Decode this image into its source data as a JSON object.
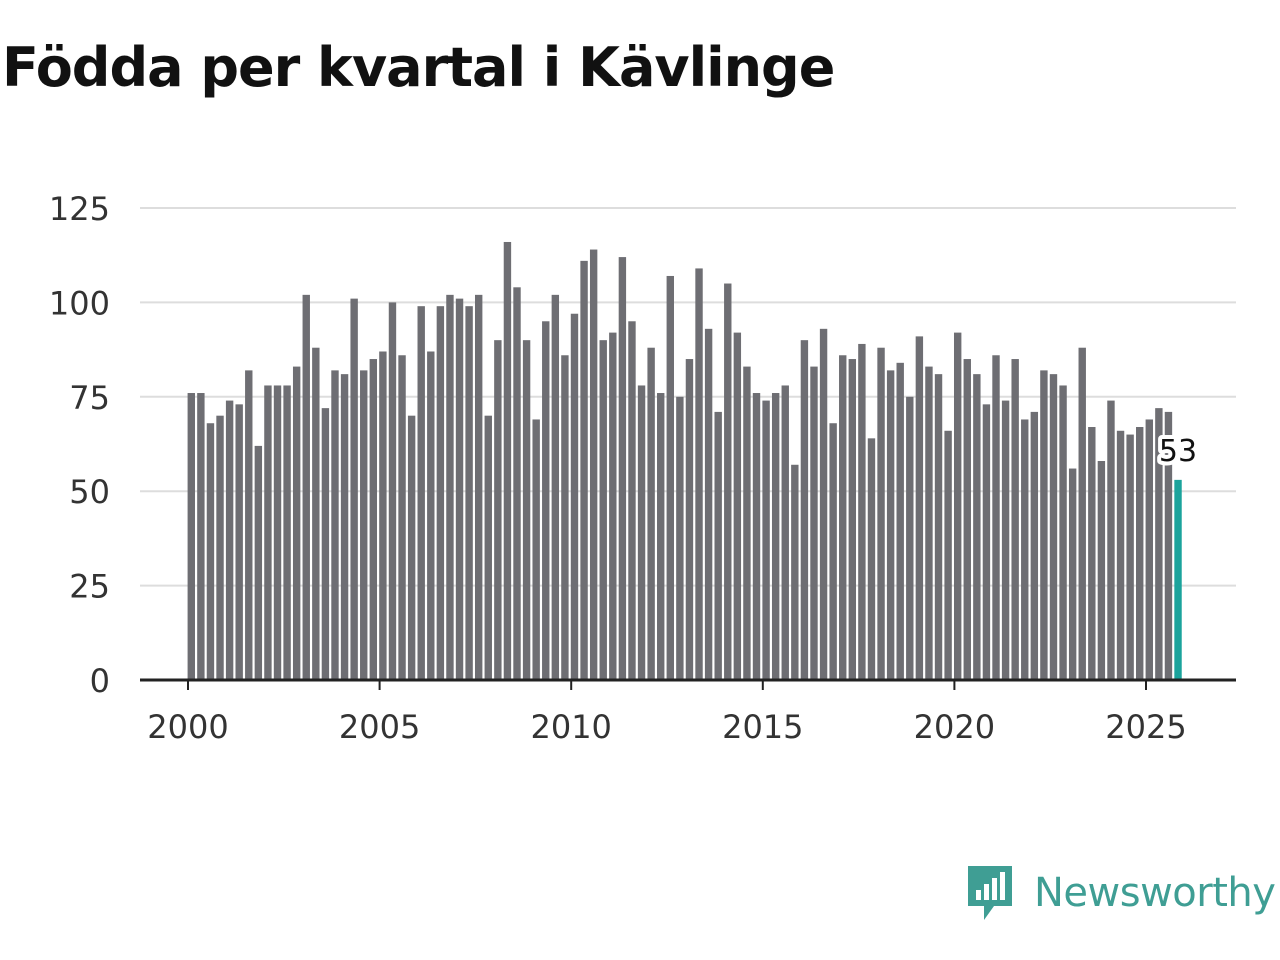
{
  "chart_data": {
    "type": "bar",
    "title": "Födda per kvartal i Kävlinge",
    "xlabel": "",
    "ylabel": "",
    "ylim": [
      0,
      125
    ],
    "yticks": [
      "0",
      "25",
      "50",
      "75",
      "100",
      "125"
    ],
    "xticks": [
      "2000",
      "2005",
      "2010",
      "2015",
      "2020",
      "2025"
    ],
    "grid": true,
    "start_quarter": "2000 Q1",
    "values": [
      76,
      76,
      68,
      70,
      74,
      73,
      82,
      62,
      78,
      78,
      78,
      83,
      102,
      88,
      72,
      82,
      81,
      101,
      82,
      85,
      87,
      100,
      86,
      70,
      99,
      87,
      99,
      102,
      101,
      99,
      102,
      70,
      90,
      116,
      104,
      90,
      69,
      95,
      102,
      86,
      97,
      111,
      114,
      90,
      92,
      112,
      95,
      78,
      88,
      76,
      107,
      75,
      85,
      109,
      93,
      71,
      105,
      92,
      83,
      76,
      74,
      76,
      78,
      57,
      90,
      83,
      93,
      68,
      86,
      85,
      89,
      64,
      88,
      82,
      84,
      75,
      91,
      83,
      81,
      66,
      92,
      85,
      81,
      73,
      86,
      74,
      85,
      69,
      71,
      82,
      81,
      78,
      56,
      88,
      67,
      58,
      74,
      66,
      65,
      67,
      69,
      72,
      71,
      53
    ],
    "highlight_last": true,
    "last_label": "53",
    "bar_color": "#6e6e73",
    "highlight_color": "#1ba39c"
  },
  "brand": {
    "name": "Newsworthy",
    "icon": "newsworthy-logo-icon",
    "color": "#3f9e94"
  }
}
